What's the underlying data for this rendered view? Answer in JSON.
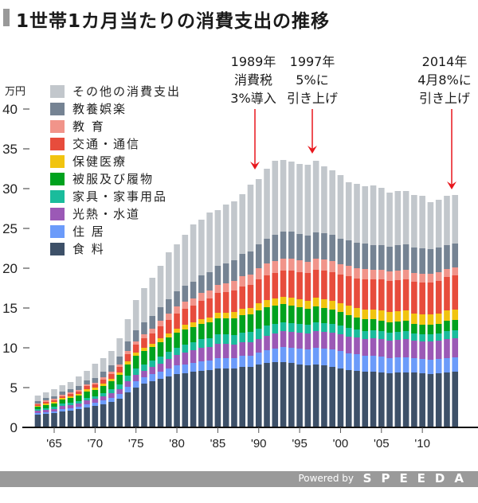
{
  "title": "1世帯1カ月当たりの消費支出の推移",
  "footer": {
    "powered": "Powered by",
    "brand": "SPEEDA"
  },
  "annotations": [
    {
      "year": 1989,
      "lines": [
        "1989年",
        "消費税",
        "3%導入"
      ]
    },
    {
      "year": 1997,
      "lines": [
        "1997年",
        "5%に",
        "引き上げ"
      ]
    },
    {
      "year": 2014,
      "lines": [
        "2014年",
        "4月8%に",
        "引き上げ"
      ]
    }
  ],
  "arrow_color": "#e8161c",
  "chart_data": {
    "type": "bar",
    "stacked": true,
    "title": "1世帯1カ月当たりの消費支出の推移",
    "ylabel": "万円",
    "ylim": [
      0,
      40
    ],
    "yticks": [
      "0",
      "5",
      "10",
      "15",
      "20",
      "25",
      "30",
      "35",
      "40"
    ],
    "xticks": [
      {
        "year": 1965,
        "label": "'65"
      },
      {
        "year": 1970,
        "label": "'70"
      },
      {
        "year": 1975,
        "label": "'75"
      },
      {
        "year": 1980,
        "label": "'80"
      },
      {
        "year": 1985,
        "label": "'85"
      },
      {
        "year": 1990,
        "label": "'90"
      },
      {
        "year": 1995,
        "label": "'95"
      },
      {
        "year": 2000,
        "label": "'00"
      },
      {
        "year": 2005,
        "label": "'05"
      },
      {
        "year": 2010,
        "label": "'10"
      }
    ],
    "legend_position": "top-left",
    "years": [
      1963,
      1964,
      1965,
      1966,
      1967,
      1968,
      1969,
      1970,
      1971,
      1972,
      1973,
      1974,
      1975,
      1976,
      1977,
      1978,
      1979,
      1980,
      1981,
      1982,
      1983,
      1984,
      1985,
      1986,
      1987,
      1988,
      1989,
      1990,
      1991,
      1992,
      1993,
      1994,
      1995,
      1996,
      1997,
      1998,
      1999,
      2000,
      2001,
      2002,
      2003,
      2004,
      2005,
      2006,
      2007,
      2008,
      2009,
      2010,
      2011,
      2012,
      2013,
      2014
    ],
    "series": [
      {
        "name": "食 料",
        "color": "#3d5068",
        "values": [
          1.6,
          1.7,
          1.8,
          2.0,
          2.1,
          2.3,
          2.5,
          2.7,
          2.9,
          3.2,
          3.6,
          4.4,
          5.0,
          5.5,
          5.8,
          6.1,
          6.4,
          6.7,
          6.8,
          7.0,
          7.1,
          7.2,
          7.4,
          7.4,
          7.4,
          7.6,
          7.6,
          7.9,
          8.1,
          8.2,
          8.2,
          8.1,
          7.9,
          7.8,
          7.9,
          7.8,
          7.6,
          7.4,
          7.2,
          7.1,
          7.0,
          7.0,
          6.9,
          6.8,
          6.9,
          6.9,
          6.9,
          6.8,
          6.7,
          6.8,
          6.9,
          7.0
        ]
      },
      {
        "name": "住 居",
        "color": "#6b9bfa",
        "values": [
          0.2,
          0.2,
          0.2,
          0.3,
          0.3,
          0.3,
          0.4,
          0.4,
          0.5,
          0.5,
          0.6,
          0.7,
          0.8,
          0.8,
          0.9,
          0.9,
          1.0,
          1.1,
          1.1,
          1.1,
          1.2,
          1.2,
          1.3,
          1.3,
          1.3,
          1.4,
          1.4,
          1.5,
          1.6,
          1.7,
          1.9,
          1.9,
          2.0,
          2.0,
          2.1,
          2.1,
          2.2,
          2.2,
          2.1,
          2.1,
          2.0,
          2.0,
          2.0,
          1.9,
          1.9,
          1.9,
          1.8,
          1.8,
          1.8,
          1.8,
          1.8,
          1.8
        ]
      },
      {
        "name": "光熱・水道",
        "color": "#9b59b6",
        "values": [
          0.3,
          0.3,
          0.3,
          0.4,
          0.4,
          0.4,
          0.5,
          0.5,
          0.5,
          0.6,
          0.6,
          0.7,
          0.8,
          0.8,
          0.9,
          1.0,
          1.2,
          1.3,
          1.5,
          1.6,
          1.7,
          1.7,
          1.8,
          1.8,
          1.7,
          1.7,
          1.7,
          1.7,
          1.8,
          1.9,
          2.0,
          2.0,
          2.0,
          2.0,
          2.1,
          2.1,
          2.1,
          2.1,
          2.1,
          2.1,
          2.1,
          2.2,
          2.2,
          2.2,
          2.2,
          2.3,
          2.2,
          2.2,
          2.3,
          2.3,
          2.4,
          2.4
        ]
      },
      {
        "name": "家具・家事用品",
        "color": "#1abc9c",
        "values": [
          0.2,
          0.2,
          0.3,
          0.3,
          0.3,
          0.3,
          0.3,
          0.3,
          0.4,
          0.5,
          0.6,
          0.7,
          0.8,
          0.8,
          0.8,
          0.9,
          0.9,
          0.9,
          1.0,
          1.0,
          1.1,
          1.1,
          1.2,
          1.2,
          1.2,
          1.2,
          1.3,
          1.3,
          1.3,
          1.2,
          1.1,
          1.1,
          1.1,
          1.1,
          1.1,
          1.1,
          1.1,
          1.1,
          1.1,
          1.0,
          1.0,
          1.0,
          1.0,
          1.0,
          1.0,
          1.0,
          0.9,
          0.9,
          0.9,
          0.9,
          1.0,
          1.0
        ]
      },
      {
        "name": "被服及び履物",
        "color": "#00a21e",
        "values": [
          0.3,
          0.4,
          0.4,
          0.5,
          0.6,
          0.7,
          0.8,
          0.8,
          0.9,
          1.0,
          1.2,
          1.4,
          1.6,
          1.7,
          1.7,
          1.8,
          1.8,
          1.9,
          1.9,
          1.9,
          1.9,
          2.0,
          2.0,
          2.0,
          2.1,
          2.2,
          2.2,
          2.3,
          2.3,
          2.3,
          2.3,
          2.2,
          2.1,
          2.0,
          2.0,
          1.9,
          1.8,
          1.7,
          1.6,
          1.5,
          1.5,
          1.4,
          1.3,
          1.3,
          1.3,
          1.3,
          1.2,
          1.2,
          1.2,
          1.2,
          1.3,
          1.3
        ]
      },
      {
        "name": "保健医療",
        "color": "#f1c40f",
        "values": [
          0.1,
          0.2,
          0.2,
          0.2,
          0.2,
          0.2,
          0.3,
          0.3,
          0.3,
          0.3,
          0.3,
          0.4,
          0.4,
          0.4,
          0.4,
          0.5,
          0.5,
          0.5,
          0.6,
          0.6,
          0.6,
          0.6,
          0.7,
          0.7,
          0.8,
          0.8,
          0.8,
          0.9,
          0.9,
          0.9,
          0.9,
          1.0,
          1.0,
          1.0,
          1.1,
          1.1,
          1.1,
          1.1,
          1.2,
          1.2,
          1.2,
          1.2,
          1.3,
          1.3,
          1.3,
          1.3,
          1.3,
          1.3,
          1.3,
          1.3,
          1.3,
          1.3
        ]
      },
      {
        "name": "交通・通信",
        "color": "#e74c3c",
        "values": [
          0.2,
          0.2,
          0.2,
          0.2,
          0.3,
          0.3,
          0.4,
          0.4,
          0.5,
          0.6,
          0.7,
          0.9,
          1.0,
          1.2,
          1.3,
          1.5,
          1.7,
          1.9,
          2.0,
          2.1,
          2.3,
          2.4,
          2.5,
          2.6,
          2.7,
          2.8,
          2.9,
          3.0,
          3.1,
          3.2,
          3.3,
          3.4,
          3.4,
          3.5,
          3.5,
          3.6,
          3.6,
          3.6,
          3.7,
          3.7,
          3.8,
          3.8,
          3.9,
          3.9,
          3.9,
          3.9,
          4.0,
          4.0,
          4.0,
          4.1,
          4.2,
          4.3
        ]
      },
      {
        "name": "教 育",
        "color": "#f1948a",
        "values": [
          0.1,
          0.2,
          0.2,
          0.2,
          0.2,
          0.2,
          0.2,
          0.2,
          0.3,
          0.3,
          0.3,
          0.4,
          0.4,
          0.5,
          0.6,
          0.7,
          0.8,
          0.9,
          0.9,
          0.9,
          1.0,
          1.0,
          1.0,
          1.1,
          1.2,
          1.3,
          1.3,
          1.4,
          1.5,
          1.5,
          1.5,
          1.5,
          1.5,
          1.4,
          1.4,
          1.4,
          1.4,
          1.3,
          1.3,
          1.3,
          1.3,
          1.2,
          1.2,
          1.2,
          1.2,
          1.2,
          1.1,
          1.1,
          1.1,
          1.1,
          1.0,
          1.0
        ]
      },
      {
        "name": "教養娯楽",
        "color": "#758393",
        "values": [
          0.3,
          0.3,
          0.3,
          0.4,
          0.4,
          0.5,
          0.5,
          0.6,
          0.7,
          0.8,
          1.0,
          1.2,
          1.4,
          1.5,
          1.6,
          1.7,
          1.8,
          1.9,
          2.0,
          2.1,
          2.2,
          2.3,
          2.4,
          2.5,
          2.6,
          2.8,
          2.9,
          3.0,
          3.1,
          3.3,
          3.4,
          3.4,
          3.3,
          3.3,
          3.3,
          3.3,
          3.3,
          3.2,
          3.2,
          3.2,
          3.2,
          3.1,
          3.1,
          3.1,
          3.2,
          3.2,
          3.2,
          3.2,
          3.1,
          3.1,
          3.0,
          3.0
        ]
      },
      {
        "name": "その他の消費支出",
        "color": "#c2c7cc",
        "values": [
          0.7,
          0.7,
          0.9,
          0.8,
          0.9,
          1.2,
          1.2,
          1.8,
          1.7,
          1.8,
          2.3,
          2.8,
          3.8,
          4.3,
          4.8,
          5.2,
          5.9,
          5.9,
          6.4,
          7.2,
          7.0,
          7.5,
          7.0,
          7.4,
          7.4,
          7.5,
          8.4,
          8.2,
          8.8,
          9.3,
          9.0,
          8.8,
          8.8,
          8.9,
          9.0,
          8.4,
          8.1,
          8.0,
          7.3,
          7.4,
          7.2,
          7.5,
          7.2,
          6.8,
          6.8,
          6.7,
          6.6,
          6.6,
          5.9,
          6.0,
          6.2,
          6.1
        ]
      }
    ]
  }
}
